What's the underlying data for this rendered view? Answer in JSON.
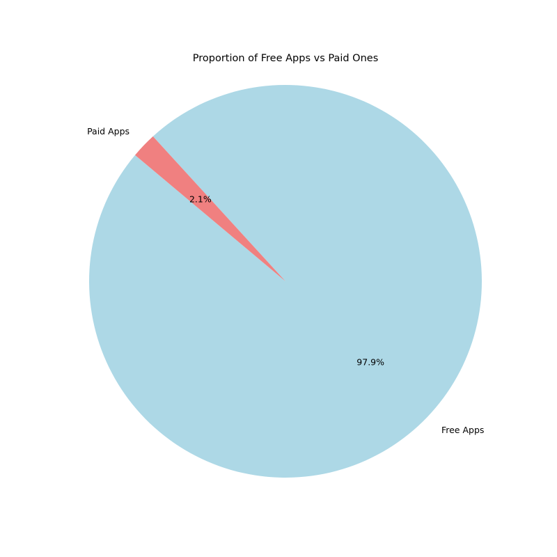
{
  "chart_data": {
    "type": "pie",
    "title": "Proportion of Free Apps vs Paid Ones",
    "start_angle_deg": 140,
    "counterclockwise": true,
    "slices": [
      {
        "label": "Free Apps",
        "value": 97.9,
        "pct_label": "97.9%",
        "color": "#add8e6"
      },
      {
        "label": "Paid Apps",
        "value": 2.1,
        "pct_label": "2.1%",
        "color": "#f08080"
      }
    ]
  }
}
